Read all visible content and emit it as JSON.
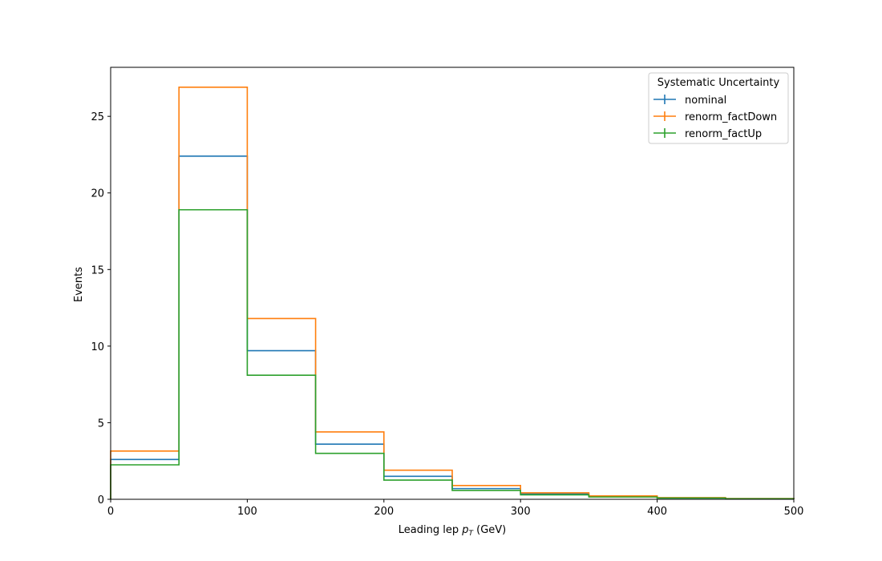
{
  "chart_data": {
    "type": "histogram-step",
    "xlabel_prefix": "Leading lep ",
    "xlabel_var": "p",
    "xlabel_sub": "T",
    "xlabel_suffix": " (GeV)",
    "ylabel": "Events",
    "xlim": [
      0,
      500
    ],
    "ylim": [
      0,
      28.2
    ],
    "xticks": [
      0,
      100,
      200,
      300,
      400,
      500
    ],
    "yticks": [
      0,
      5,
      10,
      15,
      20,
      25
    ],
    "bin_edges": [
      0,
      50,
      100,
      150,
      200,
      250,
      300,
      350,
      400,
      450,
      500
    ],
    "legend": {
      "title": "Systematic Uncertainty",
      "location": "upper right"
    },
    "grid": false,
    "series": [
      {
        "name": "nominal",
        "color": "#1f77b4",
        "values": [
          2.6,
          22.4,
          9.7,
          3.6,
          1.5,
          0.7,
          0.35,
          0.18,
          0.09,
          0.04
        ]
      },
      {
        "name": "renorm_factDown",
        "color": "#ff7f0e",
        "values": [
          3.15,
          26.9,
          11.8,
          4.4,
          1.9,
          0.9,
          0.42,
          0.22,
          0.11,
          0.05
        ]
      },
      {
        "name": "renorm_factUp",
        "color": "#2ca02c",
        "values": [
          2.25,
          18.9,
          8.1,
          3.0,
          1.25,
          0.58,
          0.29,
          0.15,
          0.08,
          0.035
        ]
      }
    ]
  }
}
